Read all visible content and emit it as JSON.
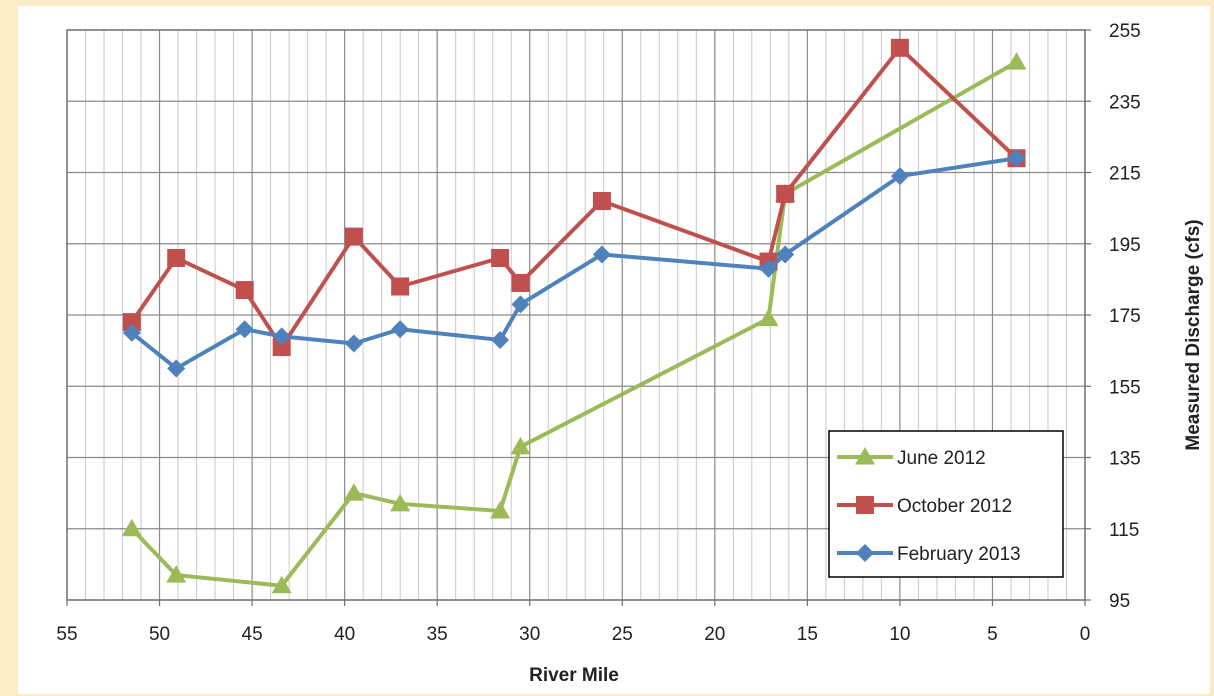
{
  "chart_data": {
    "type": "line",
    "xlabel": "River Mile",
    "ylabel": "Measured Discharge  (cfs)",
    "xlim": [
      55,
      0
    ],
    "ylim": [
      95,
      255
    ],
    "x_reversed": true,
    "y_axis_side": "right",
    "x_ticks": [
      55,
      50,
      45,
      40,
      35,
      30,
      25,
      20,
      15,
      10,
      5,
      0
    ],
    "y_ticks": [
      95,
      115,
      135,
      155,
      175,
      195,
      215,
      235,
      255
    ],
    "grid": true,
    "legend": "bottom-right",
    "series": [
      {
        "name": "June 2012",
        "color": "#9bbb59",
        "marker": "triangle",
        "x": [
          51.5,
          49.1,
          43.4,
          39.5,
          37.0,
          31.6,
          30.5,
          17.1,
          16.2,
          3.7
        ],
        "y": [
          115,
          102,
          99,
          125,
          122,
          120,
          138,
          174,
          209,
          246
        ]
      },
      {
        "name": "October 2012",
        "color": "#c0504d",
        "marker": "square",
        "x": [
          51.5,
          49.1,
          45.4,
          43.4,
          39.5,
          37.0,
          31.6,
          30.5,
          26.1,
          17.1,
          16.2,
          10.0,
          3.7
        ],
        "y": [
          173,
          191,
          182,
          166,
          197,
          183,
          191,
          184,
          207,
          190,
          209,
          250,
          219
        ]
      },
      {
        "name": "February 2013",
        "color": "#4f81bd",
        "marker": "diamond",
        "x": [
          51.5,
          49.1,
          45.4,
          43.4,
          39.5,
          37.0,
          31.6,
          30.5,
          26.1,
          17.1,
          16.2,
          10.0,
          3.7
        ],
        "y": [
          170,
          160,
          171,
          169,
          167,
          171,
          168,
          178,
          192,
          188,
          192,
          214,
          219
        ]
      }
    ]
  }
}
